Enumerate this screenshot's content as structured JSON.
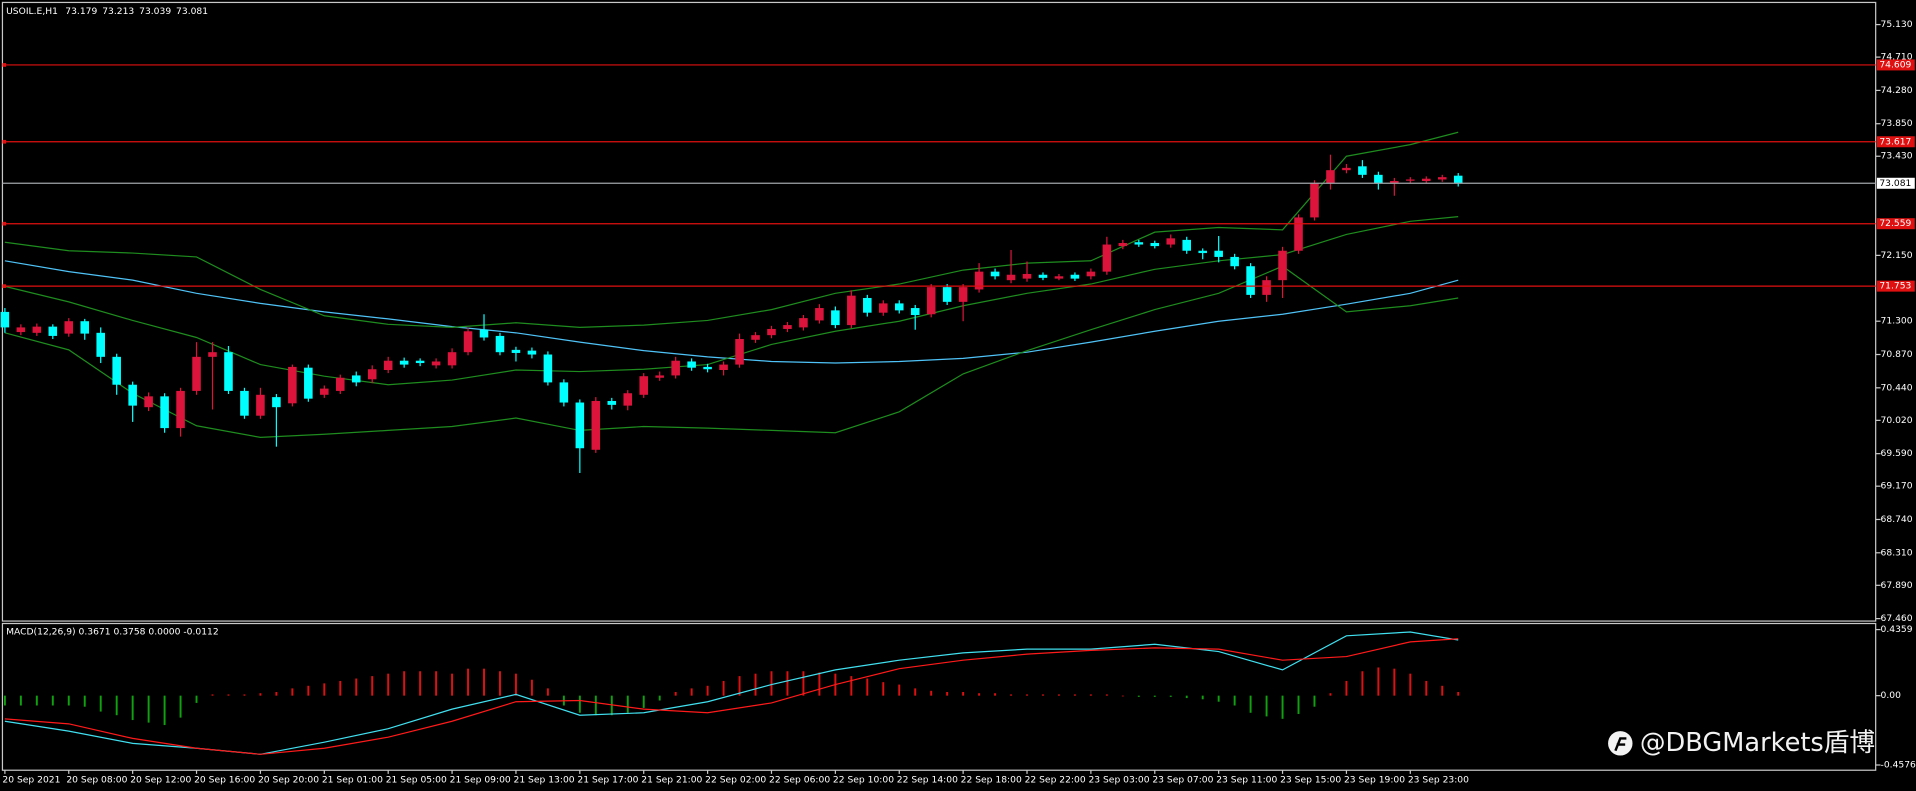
{
  "chart_data": [
    {
      "type": "candlestick",
      "title": "USOIL.E,H1",
      "categories": [
        "20 Sep 2021",
        null,
        null,
        null,
        "20 Sep 08:00",
        null,
        null,
        null,
        "20 Sep 12:00",
        null,
        null,
        null,
        "20 Sep 16:00",
        null,
        null,
        null,
        "20 Sep 20:00",
        null,
        null,
        null,
        "21 Sep 01:00",
        null,
        null,
        null,
        "21 Sep 05:00",
        null,
        null,
        null,
        "21 Sep 09:00",
        null,
        null,
        null,
        "21 Sep 13:00",
        null,
        null,
        null,
        "21 Sep 17:00",
        null,
        null,
        null,
        "21 Sep 21:00",
        null,
        null,
        null,
        "22 Sep 02:00",
        null,
        null,
        null,
        "22 Sep 06:00",
        null,
        null,
        null,
        "22 Sep 10:00",
        null,
        null,
        null,
        "22 Sep 14:00",
        null,
        null,
        null,
        "22 Sep 18:00",
        null,
        null,
        null,
        "22 Sep 22:00",
        null,
        null,
        null,
        "23 Sep 03:00",
        null,
        null,
        null,
        "23 Sep 07:00",
        null,
        null,
        null,
        "23 Sep 11:00",
        null,
        null,
        null,
        "23 Sep 15:00",
        null,
        null,
        null,
        "23 Sep 19:00",
        null,
        null,
        null,
        "23 Sep 23:00",
        null,
        null,
        null
      ],
      "open": [
        71.42,
        71.16,
        71.15,
        71.23,
        71.14,
        71.3,
        71.15,
        70.84,
        70.48,
        70.19,
        70.33,
        69.92,
        70.4,
        70.84,
        70.9,
        70.4,
        70.08,
        70.32,
        70.24,
        70.7,
        70.35,
        70.4,
        70.6,
        70.55,
        70.67,
        70.79,
        70.79,
        70.73,
        70.73,
        70.9,
        71.19,
        71.11,
        70.93,
        70.92,
        70.87,
        70.51,
        70.25,
        69.64,
        70.27,
        70.21,
        70.35,
        70.57,
        70.6,
        70.78,
        70.71,
        70.67,
        70.74,
        71.06,
        71.12,
        71.2,
        71.22,
        71.31,
        71.44,
        71.25,
        71.6,
        71.41,
        71.53,
        71.47,
        71.39,
        71.74,
        71.55,
        71.71,
        71.94,
        71.83,
        71.85,
        71.9,
        71.85,
        71.9,
        71.88,
        71.94,
        72.27,
        72.32,
        72.31,
        72.29,
        72.35,
        72.21,
        72.21,
        72.13,
        72.01,
        71.64,
        71.83,
        72.21,
        72.64,
        73.08,
        73.25,
        73.3,
        73.19,
        73.08,
        73.12,
        73.11,
        73.13,
        73.179
      ],
      "high": [
        71.47,
        71.26,
        71.27,
        71.26,
        71.34,
        71.33,
        71.22,
        70.88,
        70.52,
        70.38,
        70.37,
        70.44,
        71.03,
        71.03,
        70.98,
        70.44,
        70.44,
        70.36,
        70.74,
        70.74,
        70.47,
        70.61,
        70.65,
        70.73,
        70.84,
        70.83,
        70.82,
        70.82,
        70.95,
        71.22,
        71.39,
        71.15,
        70.97,
        70.96,
        70.91,
        70.55,
        70.29,
        70.32,
        70.31,
        70.41,
        70.63,
        70.65,
        70.84,
        70.82,
        70.75,
        70.78,
        71.14,
        71.16,
        71.24,
        71.29,
        71.38,
        71.52,
        71.49,
        71.7,
        71.64,
        71.57,
        71.57,
        71.51,
        71.78,
        71.78,
        71.78,
        72.05,
        71.98,
        72.22,
        72.07,
        71.93,
        71.91,
        71.93,
        71.98,
        72.39,
        72.35,
        72.35,
        72.34,
        72.42,
        72.39,
        72.24,
        72.4,
        72.17,
        72.05,
        71.88,
        72.26,
        72.68,
        73.12,
        73.45,
        73.33,
        73.38,
        73.23,
        73.15,
        73.16,
        73.17,
        73.19,
        73.213
      ],
      "low": [
        71.15,
        71.12,
        71.11,
        71.07,
        71.1,
        71.06,
        70.76,
        70.35,
        70.0,
        70.14,
        69.86,
        69.81,
        70.35,
        70.16,
        70.36,
        70.04,
        70.04,
        69.68,
        70.2,
        70.26,
        70.31,
        70.36,
        70.46,
        70.5,
        70.63,
        70.7,
        70.72,
        70.69,
        70.69,
        70.86,
        71.05,
        70.86,
        70.78,
        70.82,
        70.47,
        70.2,
        69.34,
        69.6,
        70.16,
        70.15,
        70.31,
        70.53,
        70.56,
        70.66,
        70.64,
        70.6,
        70.7,
        71.02,
        71.08,
        71.16,
        71.18,
        71.27,
        71.21,
        71.21,
        71.36,
        71.37,
        71.4,
        71.19,
        71.35,
        71.51,
        71.3,
        71.67,
        71.84,
        71.79,
        71.81,
        71.83,
        71.83,
        71.82,
        71.84,
        71.9,
        72.23,
        72.26,
        72.24,
        72.25,
        72.17,
        72.1,
        72.06,
        71.97,
        71.6,
        71.55,
        71.6,
        72.17,
        72.6,
        73.0,
        73.21,
        73.15,
        73.0,
        72.92,
        73.08,
        73.08,
        73.1,
        73.039
      ],
      "close": [
        71.22,
        71.22,
        71.23,
        71.11,
        71.3,
        71.14,
        70.84,
        70.48,
        70.21,
        70.33,
        69.92,
        70.4,
        70.84,
        70.9,
        70.4,
        70.08,
        70.35,
        70.19,
        70.71,
        70.3,
        70.43,
        70.57,
        70.51,
        70.68,
        70.79,
        70.74,
        70.76,
        70.78,
        70.9,
        71.17,
        71.09,
        70.9,
        70.89,
        70.87,
        70.51,
        70.25,
        69.66,
        70.27,
        70.22,
        70.37,
        70.59,
        70.6,
        70.79,
        70.7,
        70.68,
        70.74,
        71.07,
        71.12,
        71.2,
        71.25,
        71.34,
        71.47,
        71.25,
        71.63,
        71.41,
        71.53,
        71.44,
        71.38,
        71.74,
        71.55,
        71.74,
        71.94,
        71.88,
        71.9,
        71.91,
        71.86,
        71.88,
        71.85,
        71.94,
        72.29,
        72.31,
        72.29,
        72.27,
        72.37,
        72.21,
        72.18,
        72.13,
        72.01,
        71.64,
        71.83,
        72.21,
        72.64,
        73.08,
        73.25,
        73.28,
        73.19,
        73.08,
        73.11,
        73.13,
        73.14,
        73.16,
        73.081
      ],
      "up_color": "#dc143c",
      "down_color": "#00ffff",
      "ylim": [
        67.46,
        75.4
      ],
      "yticks": [
        {
          "value": 75.13,
          "label": "75.130"
        },
        {
          "value": 74.71,
          "label": "74.710"
        },
        {
          "value": 74.28,
          "label": "74.280"
        },
        {
          "value": 73.85,
          "label": "73.850"
        },
        {
          "value": 73.43,
          "label": "73.430"
        },
        {
          "value": 72.15,
          "label": "72.150"
        },
        {
          "value": 71.3,
          "label": "71.300"
        },
        {
          "value": 70.87,
          "label": "70.870"
        },
        {
          "value": 70.44,
          "label": "70.440"
        },
        {
          "value": 70.02,
          "label": "70.020"
        },
        {
          "value": 69.59,
          "label": "69.590"
        },
        {
          "value": 69.17,
          "label": "69.170"
        },
        {
          "value": 68.74,
          "label": "68.740"
        },
        {
          "value": 68.31,
          "label": "68.310"
        },
        {
          "value": 67.89,
          "label": "67.890"
        },
        {
          "value": 67.46,
          "label": "67.460"
        }
      ],
      "levels": {
        "values": [
          74.609,
          73.617,
          72.559,
          71.753
        ],
        "color": "#e01010"
      },
      "last_price_color": "#a0a4a8",
      "series": [
        {
          "color": "#4fc3f7",
          "x": [
            0,
            4,
            8,
            12,
            16,
            20,
            24,
            28,
            32,
            36,
            40,
            44,
            48,
            52,
            56,
            60,
            64,
            68,
            72,
            76,
            80,
            84,
            88,
            91
          ],
          "values": [
            72.08,
            71.94,
            71.83,
            71.66,
            71.53,
            71.42,
            71.33,
            71.23,
            71.15,
            71.03,
            70.92,
            70.84,
            70.78,
            70.76,
            70.78,
            70.82,
            70.9,
            71.03,
            71.17,
            71.3,
            71.39,
            71.52,
            71.66,
            71.83
          ]
        },
        {
          "color": "#1e8c1e",
          "x": [
            0,
            4,
            8,
            12,
            16,
            20,
            24,
            28,
            32,
            36,
            40,
            44,
            48,
            52,
            56,
            60,
            64,
            68,
            72,
            76,
            80,
            84,
            88,
            91
          ],
          "values": [
            72.32,
            72.21,
            72.18,
            72.13,
            71.71,
            71.37,
            71.26,
            71.22,
            71.28,
            71.22,
            71.25,
            71.31,
            71.45,
            71.66,
            71.78,
            71.96,
            72.05,
            72.08,
            72.45,
            72.51,
            72.48,
            73.43,
            73.58,
            73.74
          ]
        },
        {
          "color": "#1e8c1e",
          "x": [
            0,
            4,
            8,
            12,
            16,
            20,
            24,
            28,
            32,
            36,
            40,
            44,
            48,
            52,
            56,
            60,
            64,
            68,
            72,
            76,
            80,
            84,
            88,
            91
          ],
          "values": [
            71.75,
            71.55,
            71.31,
            71.09,
            70.74,
            70.59,
            70.48,
            70.54,
            70.67,
            70.65,
            70.68,
            70.74,
            71.0,
            71.17,
            71.3,
            71.5,
            71.66,
            71.78,
            71.97,
            72.08,
            72.16,
            72.42,
            72.59,
            72.65
          ]
        },
        {
          "color": "#1e8c1e",
          "x": [
            0,
            4,
            8,
            12,
            16,
            20,
            24,
            28,
            32,
            36,
            40,
            44,
            48,
            52,
            56,
            60,
            64,
            68,
            72,
            76,
            80,
            84,
            88,
            91
          ],
          "values": [
            71.15,
            70.93,
            70.37,
            69.95,
            69.8,
            69.84,
            69.89,
            69.94,
            70.05,
            69.89,
            69.94,
            69.92,
            69.89,
            69.86,
            70.13,
            70.62,
            70.92,
            71.19,
            71.45,
            71.66,
            72.01,
            71.42,
            71.5,
            71.6
          ]
        }
      ]
    },
    {
      "type": "macd",
      "title": "MACD(12,26,9) 0.3671 0.3758 0.0000 -0.0112",
      "histogram": [
        -0.065,
        -0.065,
        -0.065,
        -0.065,
        -0.065,
        -0.073,
        -0.105,
        -0.129,
        -0.161,
        -0.178,
        -0.194,
        -0.145,
        -0.048,
        0.008,
        0.008,
        0.008,
        0.016,
        0.024,
        0.048,
        0.065,
        0.081,
        0.097,
        0.113,
        0.129,
        0.145,
        0.161,
        0.161,
        0.161,
        0.145,
        0.178,
        0.178,
        0.161,
        0.145,
        0.105,
        0.048,
        -0.065,
        -0.113,
        -0.129,
        -0.129,
        -0.113,
        -0.081,
        -0.032,
        0.024,
        0.048,
        0.065,
        0.097,
        0.129,
        0.145,
        0.161,
        0.161,
        0.161,
        0.153,
        0.145,
        0.129,
        0.113,
        0.089,
        0.073,
        0.048,
        0.032,
        0.024,
        0.024,
        0.016,
        0.016,
        0.008,
        0.008,
        0.008,
        0.008,
        0.008,
        0.008,
        0.008,
        0,
        -0.008,
        -0.008,
        -0.008,
        -0.016,
        -0.024,
        -0.04,
        -0.065,
        -0.113,
        -0.137,
        -0.153,
        -0.121,
        -0.073,
        0.016,
        0.097,
        0.161,
        0.186,
        0.178,
        0.145,
        0.097,
        0.065,
        0.024
      ],
      "positive_color": "#e01010",
      "negative_color": "#10a010",
      "ylim": [
        -0.484,
        0.468
      ],
      "yticks": [
        0.4359,
        {
          "value": 0,
          "label": "0.00"
        },
        -0.4576
      ],
      "series": [
        {
          "color": "#40e0f0",
          "x": [
            0,
            4,
            8,
            12,
            16,
            20,
            24,
            28,
            32,
            36,
            40,
            44,
            48,
            52,
            56,
            60,
            64,
            68,
            72,
            76,
            80,
            84,
            88,
            91
          ],
          "values": [
            -0.169,
            -0.234,
            -0.315,
            -0.347,
            -0.387,
            -0.307,
            -0.218,
            -0.089,
            0.008,
            -0.129,
            -0.113,
            -0.04,
            0.073,
            0.17,
            0.234,
            0.282,
            0.307,
            0.307,
            0.339,
            0.291,
            0.17,
            0.395,
            0.42,
            0.3671
          ]
        },
        {
          "color": "#ff1a1a",
          "x": [
            0,
            4,
            8,
            12,
            16,
            20,
            24,
            28,
            32,
            36,
            40,
            44,
            48,
            52,
            56,
            60,
            64,
            68,
            72,
            76,
            80,
            84,
            88,
            91
          ],
          "values": [
            -0.153,
            -0.186,
            -0.282,
            -0.347,
            -0.387,
            -0.347,
            -0.274,
            -0.169,
            -0.04,
            -0.032,
            -0.089,
            -0.113,
            -0.048,
            0.073,
            0.178,
            0.234,
            0.274,
            0.299,
            0.315,
            0.307,
            0.234,
            0.258,
            0.355,
            0.3758
          ]
        }
      ]
    }
  ],
  "watermark": "@DBGMarkets盾博"
}
